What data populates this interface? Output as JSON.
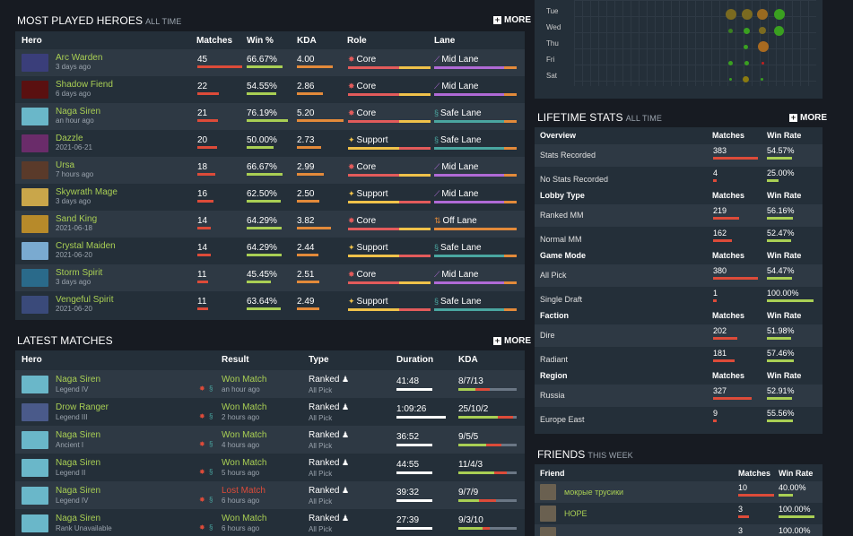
{
  "heroes_section": {
    "title": "MOST PLAYED HEROES",
    "subtitle": "ALL TIME",
    "more": "MORE"
  },
  "heroes_headers": [
    "Hero",
    "Matches",
    "Win %",
    "KDA",
    "Role",
    "Lane"
  ],
  "heroes": [
    {
      "name": "Arc Warden",
      "time": "3 days ago",
      "matches": "45",
      "win": "66.67%",
      "kda": "4.00",
      "role": "Core",
      "role_icon": "core-icon",
      "lane": "Mid Lane",
      "lane_icon": "mid-lane-icon",
      "avatar": "#3a3e7a"
    },
    {
      "name": "Shadow Fiend",
      "time": "6 days ago",
      "matches": "22",
      "win": "54.55%",
      "kda": "2.86",
      "role": "Core",
      "role_icon": "core-icon",
      "lane": "Mid Lane",
      "lane_icon": "mid-lane-icon",
      "avatar": "#5a1010"
    },
    {
      "name": "Naga Siren",
      "time": "an hour ago",
      "matches": "21",
      "win": "76.19%",
      "kda": "5.20",
      "role": "Core",
      "role_icon": "core-icon",
      "lane": "Safe Lane",
      "lane_icon": "safe-lane-icon",
      "avatar": "#6ab7c9"
    },
    {
      "name": "Dazzle",
      "time": "2021-06-21",
      "matches": "20",
      "win": "50.00%",
      "kda": "2.73",
      "role": "Support",
      "role_icon": "support-icon",
      "lane": "Safe Lane",
      "lane_icon": "safe-lane-icon",
      "avatar": "#6a2c6a"
    },
    {
      "name": "Ursa",
      "time": "7 hours ago",
      "matches": "18",
      "win": "66.67%",
      "kda": "2.99",
      "role": "Core",
      "role_icon": "core-icon",
      "lane": "Mid Lane",
      "lane_icon": "mid-lane-icon",
      "avatar": "#5a3a2a"
    },
    {
      "name": "Skywrath Mage",
      "time": "3 days ago",
      "matches": "16",
      "win": "62.50%",
      "kda": "2.50",
      "role": "Support",
      "role_icon": "support-icon",
      "lane": "Mid Lane",
      "lane_icon": "mid-lane-icon",
      "avatar": "#c9a64a"
    },
    {
      "name": "Sand King",
      "time": "2021-06-18",
      "matches": "14",
      "win": "64.29%",
      "kda": "3.82",
      "role": "Core",
      "role_icon": "core-icon",
      "lane": "Off Lane",
      "lane_icon": "off-lane-icon",
      "avatar": "#b78a2a"
    },
    {
      "name": "Crystal Maiden",
      "time": "2021-06-20",
      "matches": "14",
      "win": "64.29%",
      "kda": "2.44",
      "role": "Support",
      "role_icon": "support-icon",
      "lane": "Safe Lane",
      "lane_icon": "safe-lane-icon",
      "avatar": "#7aaad0"
    },
    {
      "name": "Storm Spirit",
      "time": "3 days ago",
      "matches": "11",
      "win": "45.45%",
      "kda": "2.51",
      "role": "Core",
      "role_icon": "core-icon",
      "lane": "Mid Lane",
      "lane_icon": "mid-lane-icon",
      "avatar": "#2a6a8a"
    },
    {
      "name": "Vengeful Spirit",
      "time": "2021-06-20",
      "matches": "11",
      "win": "63.64%",
      "kda": "2.49",
      "role": "Support",
      "role_icon": "support-icon",
      "lane": "Safe Lane",
      "lane_icon": "safe-lane-icon",
      "avatar": "#3a4a7a"
    }
  ],
  "matches_section": {
    "title": "LATEST MATCHES",
    "more": "MORE"
  },
  "matches_headers": [
    "Hero",
    "Result",
    "Type",
    "Duration",
    "KDA"
  ],
  "matches": [
    {
      "hero": "Naga Siren",
      "rank": "Legend IV",
      "result": "Won Match",
      "won": true,
      "time": "an hour ago",
      "type": "Ranked",
      "mode": "All Pick",
      "duration": "41:48",
      "kda": "8/7/13",
      "avatar": "#6ab7c9"
    },
    {
      "hero": "Drow Ranger",
      "rank": "Legend III",
      "result": "Won Match",
      "won": true,
      "time": "2 hours ago",
      "type": "Ranked",
      "mode": "All Pick",
      "duration": "1:09:26",
      "kda": "25/10/2",
      "avatar": "#4a5a8a"
    },
    {
      "hero": "Naga Siren",
      "rank": "Ancient I",
      "result": "Won Match",
      "won": true,
      "time": "4 hours ago",
      "type": "Ranked",
      "mode": "All Pick",
      "duration": "36:52",
      "kda": "9/5/5",
      "avatar": "#6ab7c9"
    },
    {
      "hero": "Naga Siren",
      "rank": "Legend II",
      "result": "Won Match",
      "won": true,
      "time": "5 hours ago",
      "type": "Ranked",
      "mode": "All Pick",
      "duration": "44:55",
      "kda": "11/4/3",
      "avatar": "#6ab7c9"
    },
    {
      "hero": "Naga Siren",
      "rank": "Legend IV",
      "result": "Lost Match",
      "won": false,
      "time": "6 hours ago",
      "type": "Ranked",
      "mode": "All Pick",
      "duration": "39:32",
      "kda": "9/7/9",
      "avatar": "#6ab7c9"
    },
    {
      "hero": "Naga Siren",
      "rank": "Rank Unavailable",
      "result": "Won Match",
      "won": true,
      "time": "6 hours ago",
      "type": "Ranked",
      "mode": "All Pick",
      "duration": "27:39",
      "kda": "9/3/10",
      "avatar": "#6ab7c9"
    }
  ],
  "heatmap": {
    "days": [
      "Tue",
      "Wed",
      "Thu",
      "Fri",
      "Sat"
    ]
  },
  "lifetime_section": {
    "title": "LIFETIME STATS",
    "subtitle": "ALL TIME",
    "more": "MORE"
  },
  "lifetime": [
    {
      "group": "Overview",
      "matches_h": "Matches",
      "rate_h": "Win Rate",
      "rows": [
        {
          "label": "Stats Recorded",
          "matches": "383",
          "rate": "54.57%"
        },
        {
          "label": "No Stats Recorded",
          "matches": "4",
          "rate": "25.00%"
        }
      ]
    },
    {
      "group": "Lobby Type",
      "matches_h": "Matches",
      "rate_h": "Win Rate",
      "rows": [
        {
          "label": "Ranked MM",
          "matches": "219",
          "rate": "56.16%"
        },
        {
          "label": "Normal MM",
          "matches": "162",
          "rate": "52.47%"
        }
      ]
    },
    {
      "group": "Game Mode",
      "matches_h": "Matches",
      "rate_h": "Win Rate",
      "rows": [
        {
          "label": "All Pick",
          "matches": "380",
          "rate": "54.47%"
        },
        {
          "label": "Single Draft",
          "matches": "1",
          "rate": "100.00%"
        }
      ]
    },
    {
      "group": "Faction",
      "matches_h": "Matches",
      "rate_h": "Win Rate",
      "rows": [
        {
          "label": "Dire",
          "matches": "202",
          "rate": "51.98%"
        },
        {
          "label": "Radiant",
          "matches": "181",
          "rate": "57.46%"
        }
      ]
    },
    {
      "group": "Region",
      "matches_h": "Matches",
      "rate_h": "Win Rate",
      "rows": [
        {
          "label": "Russia",
          "matches": "327",
          "rate": "52.91%"
        },
        {
          "label": "Europe East",
          "matches": "9",
          "rate": "55.56%"
        }
      ]
    }
  ],
  "friends_section": {
    "title": "FRIENDS",
    "subtitle": "THIS WEEK"
  },
  "friends_headers": [
    "Friend",
    "Matches",
    "Win Rate"
  ],
  "friends": [
    {
      "name": "мокрые трусики",
      "matches": "10",
      "rate": "40.00%"
    },
    {
      "name": "HOPE",
      "matches": "3",
      "rate": "100.00%"
    },
    {
      "name": "",
      "matches": "3",
      "rate": "100.00%"
    }
  ],
  "colors": {
    "green": "#a9cf54",
    "red": "#dd4b39",
    "core": "#e35b5b",
    "support": "#f0c24a",
    "mid": "#b06ad6",
    "safe": "#4aa6a0",
    "off": "#e38a3a"
  }
}
